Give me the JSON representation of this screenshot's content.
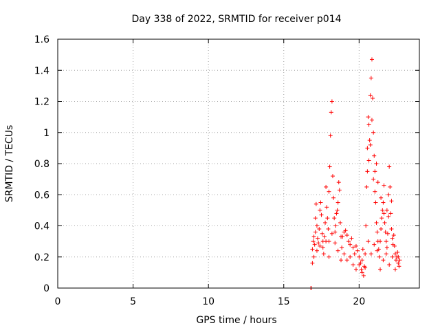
{
  "chart_data": {
    "type": "scatter",
    "title": "Day 338 of 2022, SRMTID for receiver p014",
    "xlabel": "GPS time / hours",
    "ylabel": "SRMTID / TECUs",
    "xlim": [
      0,
      24
    ],
    "ylim": [
      0,
      1.6
    ],
    "xticks": [
      0,
      5,
      10,
      15,
      20
    ],
    "xtick_labels": [
      "0",
      "5",
      "10",
      "15",
      "20"
    ],
    "yticks": [
      0,
      0.2,
      0.4,
      0.6,
      0.8,
      1.0,
      1.2,
      1.4,
      1.6
    ],
    "ytick_labels": [
      "0",
      "0.2",
      "0.4",
      "0.6",
      "0.8",
      "1",
      "1.2",
      "1.4",
      "1.6"
    ],
    "grid": true,
    "marker": "+",
    "color": "#ff0000",
    "series": [
      {
        "name": "SRMTID",
        "points": [
          [
            16.8,
            0.0
          ],
          [
            16.82,
            0.0
          ],
          [
            16.9,
            0.25
          ],
          [
            16.95,
            0.3
          ],
          [
            17.0,
            0.33
          ],
          [
            17.05,
            0.28
          ],
          [
            17.1,
            0.36
          ],
          [
            17.1,
            0.45
          ],
          [
            17.15,
            0.54
          ],
          [
            17.2,
            0.4
          ],
          [
            17.25,
            0.32
          ],
          [
            17.3,
            0.29
          ],
          [
            17.35,
            0.38
          ],
          [
            17.4,
            0.5
          ],
          [
            17.45,
            0.55
          ],
          [
            17.5,
            0.47
          ],
          [
            17.55,
            0.35
          ],
          [
            17.6,
            0.3
          ],
          [
            17.65,
            0.22
          ],
          [
            17.7,
            0.33
          ],
          [
            17.75,
            0.42
          ],
          [
            17.8,
            0.65
          ],
          [
            17.85,
            0.52
          ],
          [
            17.9,
            0.45
          ],
          [
            17.95,
            0.38
          ],
          [
            18.0,
            0.3
          ],
          [
            18.0,
            0.62
          ],
          [
            18.05,
            0.78
          ],
          [
            18.1,
            0.98
          ],
          [
            18.15,
            1.13
          ],
          [
            18.2,
            1.2
          ],
          [
            18.25,
            0.72
          ],
          [
            18.3,
            0.58
          ],
          [
            18.35,
            0.45
          ],
          [
            18.4,
            0.36
          ],
          [
            18.45,
            0.4
          ],
          [
            18.5,
            0.48
          ],
          [
            18.55,
            0.5
          ],
          [
            18.6,
            0.55
          ],
          [
            18.65,
            0.68
          ],
          [
            18.7,
            0.63
          ],
          [
            18.75,
            0.42
          ],
          [
            18.8,
            0.33
          ],
          [
            18.85,
            0.26
          ],
          [
            16.9,
            0.16
          ],
          [
            17.0,
            0.2
          ],
          [
            17.2,
            0.24
          ],
          [
            17.4,
            0.27
          ],
          [
            17.6,
            0.26
          ],
          [
            17.8,
            0.3
          ],
          [
            18.0,
            0.2
          ],
          [
            18.2,
            0.35
          ],
          [
            18.4,
            0.29
          ],
          [
            18.6,
            0.24
          ],
          [
            18.8,
            0.18
          ],
          [
            18.9,
            0.33
          ],
          [
            19.0,
            0.36
          ],
          [
            19.1,
            0.37
          ],
          [
            19.2,
            0.34
          ],
          [
            19.3,
            0.3
          ],
          [
            19.4,
            0.28
          ],
          [
            19.5,
            0.32
          ],
          [
            19.6,
            0.26
          ],
          [
            19.7,
            0.22
          ],
          [
            19.8,
            0.27
          ],
          [
            19.9,
            0.24
          ],
          [
            20.0,
            0.2
          ],
          [
            20.1,
            0.16
          ],
          [
            20.15,
            0.12
          ],
          [
            20.2,
            0.18
          ],
          [
            20.25,
            0.25
          ],
          [
            20.3,
            0.08
          ],
          [
            20.35,
            0.14
          ],
          [
            20.4,
            0.22
          ],
          [
            20.45,
            0.4
          ],
          [
            20.5,
            0.65
          ],
          [
            20.55,
            0.9
          ],
          [
            20.6,
            1.1
          ],
          [
            20.65,
            1.05
          ],
          [
            20.7,
            0.95
          ],
          [
            20.75,
            1.24
          ],
          [
            20.8,
            1.35
          ],
          [
            20.85,
            1.47
          ],
          [
            20.9,
            1.22
          ],
          [
            20.95,
            1.0
          ],
          [
            21.0,
            0.85
          ],
          [
            21.05,
            0.75
          ],
          [
            21.1,
            0.55
          ],
          [
            21.15,
            0.42
          ],
          [
            21.2,
            0.36
          ],
          [
            21.25,
            0.3
          ],
          [
            21.3,
            0.25
          ],
          [
            21.35,
            0.2
          ],
          [
            21.4,
            0.3
          ],
          [
            21.45,
            0.38
          ],
          [
            21.5,
            0.45
          ],
          [
            21.55,
            0.5
          ],
          [
            21.6,
            0.55
          ],
          [
            21.65,
            0.48
          ],
          [
            21.7,
            0.42
          ],
          [
            21.75,
            0.36
          ],
          [
            21.8,
            0.3
          ],
          [
            21.85,
            0.26
          ],
          [
            21.9,
            0.35
          ],
          [
            21.95,
            0.6
          ],
          [
            22.0,
            0.78
          ],
          [
            22.05,
            0.65
          ],
          [
            22.1,
            0.48
          ],
          [
            22.15,
            0.38
          ],
          [
            22.2,
            0.32
          ],
          [
            22.25,
            0.28
          ],
          [
            22.3,
            0.34
          ],
          [
            22.35,
            0.27
          ],
          [
            22.4,
            0.22
          ],
          [
            22.45,
            0.18
          ],
          [
            22.5,
            0.2
          ],
          [
            22.55,
            0.23
          ],
          [
            22.6,
            0.16
          ],
          [
            22.65,
            0.14
          ],
          [
            22.7,
            0.18
          ],
          [
            19.0,
            0.22
          ],
          [
            19.2,
            0.18
          ],
          [
            19.4,
            0.2
          ],
          [
            19.6,
            0.15
          ],
          [
            19.8,
            0.12
          ],
          [
            20.0,
            0.15
          ],
          [
            20.2,
            0.1
          ],
          [
            20.4,
            0.13
          ],
          [
            20.6,
            0.3
          ],
          [
            20.8,
            0.22
          ],
          [
            21.0,
            0.28
          ],
          [
            21.2,
            0.24
          ],
          [
            21.4,
            0.12
          ],
          [
            21.6,
            0.18
          ],
          [
            21.8,
            0.22
          ],
          [
            22.0,
            0.15
          ],
          [
            22.2,
            0.2
          ],
          [
            22.4,
            0.12
          ],
          [
            22.6,
            0.2
          ],
          [
            20.55,
            0.75
          ],
          [
            20.65,
            0.82
          ],
          [
            20.75,
            0.92
          ],
          [
            20.85,
            1.08
          ],
          [
            20.95,
            0.7
          ],
          [
            21.05,
            0.62
          ],
          [
            21.15,
            0.8
          ],
          [
            21.25,
            0.68
          ],
          [
            21.45,
            0.58
          ],
          [
            21.65,
            0.66
          ],
          [
            21.85,
            0.5
          ],
          [
            21.95,
            0.46
          ],
          [
            22.15,
            0.56
          ]
        ]
      }
    ]
  }
}
